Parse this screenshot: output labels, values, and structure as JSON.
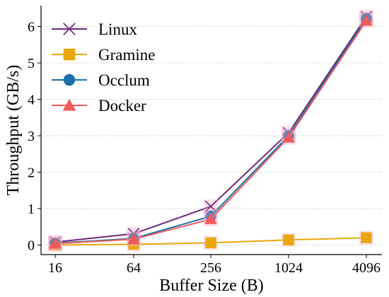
{
  "chart_data": {
    "type": "line",
    "title": "",
    "xlabel": "Buffer Size (B)",
    "ylabel": "Throughput (GB/s)",
    "x": [
      "16",
      "64",
      "256",
      "1024",
      "4096"
    ],
    "ylim": [
      -0.3,
      6.5
    ],
    "yticks": [
      "0",
      "1",
      "2",
      "3",
      "4",
      "5",
      "6"
    ],
    "grid": "horizontal dotted",
    "legend_position": "top-left",
    "series": [
      {
        "name": "Linux",
        "color": "#6a2a7a",
        "marker": "x",
        "values": [
          0.08,
          0.31,
          1.06,
          3.08,
          6.27
        ]
      },
      {
        "name": "Gramine",
        "color": "#e8a80c",
        "marker": "square",
        "values": [
          0.0,
          0.02,
          0.06,
          0.14,
          0.2
        ]
      },
      {
        "name": "Occlum",
        "color": "#1a6fa8",
        "marker": "circle",
        "values": [
          0.05,
          0.18,
          0.79,
          3.0,
          6.22
        ]
      },
      {
        "name": "Docker",
        "color": "#ef5a5a",
        "marker": "triangle",
        "values": [
          0.04,
          0.16,
          0.71,
          2.95,
          6.16
        ]
      }
    ]
  }
}
